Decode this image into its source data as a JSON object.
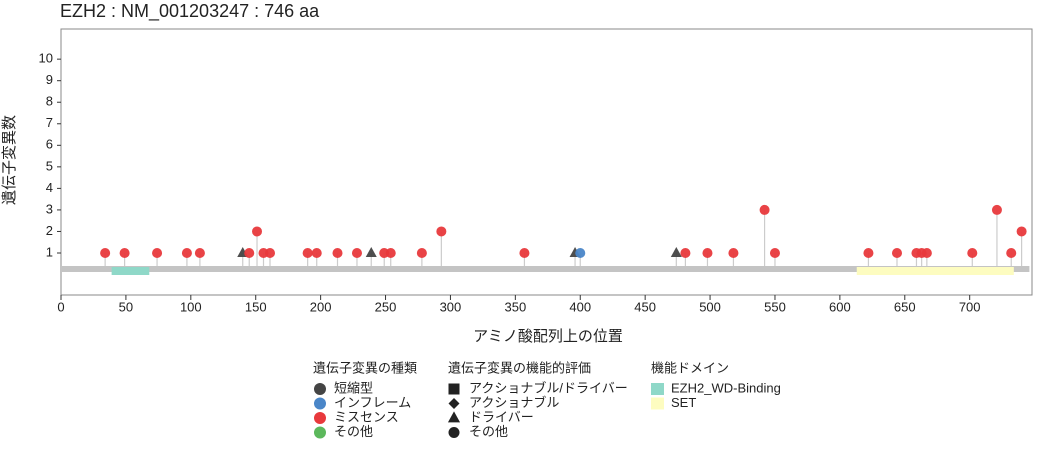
{
  "chart_data": {
    "type": "lollipop",
    "title": "EZH2 : NM_001203247 : 746 aa",
    "x_label": "アミノ酸配列上の位置",
    "y_label": "遺伝子変異数",
    "protein_length": 746,
    "xlim": [
      0,
      748
    ],
    "ylim": [
      -0.95,
      11.4
    ],
    "xticks": [
      0,
      50,
      100,
      150,
      200,
      250,
      300,
      350,
      400,
      450,
      500,
      550,
      600,
      650,
      700
    ],
    "yticks": [
      1,
      2,
      3,
      4,
      5,
      6,
      7,
      8,
      9,
      10
    ],
    "legend_type_title": "遺伝子変異の種類",
    "legend_effect_title": "遺伝子変異の機能的評価",
    "legend_domain_title": "機能ドメイン",
    "effects": [
      {
        "name": "アクショナブル/ドライバー",
        "shape": "square"
      },
      {
        "name": "アクショナブル",
        "shape": "diamond"
      },
      {
        "name": "ドライバー",
        "shape": "triangle"
      },
      {
        "name": "その他",
        "shape": "circle"
      }
    ],
    "domains": [
      {
        "name": "EZH2_WD-Binding",
        "color": "#8fd8c8",
        "start": 39,
        "end": 68
      },
      {
        "name": "SET",
        "color": "#fdfcc0",
        "start": 613,
        "end": 734
      }
    ],
    "series": [
      {
        "name": "短縮型",
        "color": "#444444",
        "x": [
          140,
          239,
          396,
          474
        ],
        "values": [
          1,
          1,
          1,
          1
        ],
        "shapes": [
          "triangle",
          "triangle",
          "triangle",
          "triangle"
        ]
      },
      {
        "name": "インフレーム",
        "color": "#4a86c8",
        "x": [
          400
        ],
        "values": [
          1
        ],
        "shapes": [
          "circle"
        ]
      },
      {
        "name": "ミスセンス",
        "color": "#e8393c",
        "x": [
          34,
          49,
          74,
          97,
          107,
          145,
          151,
          156,
          161,
          190,
          197,
          213,
          228,
          249,
          254,
          278,
          293,
          357,
          481,
          498,
          518,
          542,
          550,
          622,
          644,
          659,
          663,
          667,
          702,
          721,
          732,
          740
        ],
        "values": [
          1,
          1,
          1,
          1,
          1,
          1,
          2,
          1,
          1,
          1,
          1,
          1,
          1,
          1,
          1,
          1,
          2,
          1,
          1,
          1,
          1,
          3,
          1,
          1,
          1,
          1,
          1,
          1,
          1,
          3,
          1,
          2
        ],
        "shapes": [
          "circle",
          "circle",
          "circle",
          "circle",
          "circle",
          "circle",
          "circle",
          "circle",
          "circle",
          "circle",
          "circle",
          "circle",
          "circle",
          "circle",
          "circle",
          "circle",
          "circle",
          "circle",
          "circle",
          "circle",
          "circle",
          "circle",
          "circle",
          "circle",
          "circle",
          "circle",
          "circle",
          "circle",
          "circle",
          "circle",
          "circle",
          "circle"
        ]
      },
      {
        "name": "その他",
        "color": "#5cb85c",
        "x": [],
        "values": [],
        "shapes": []
      }
    ]
  }
}
